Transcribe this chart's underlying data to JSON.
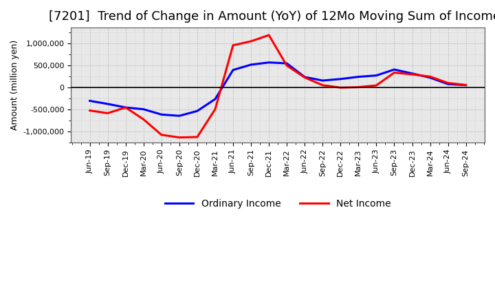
{
  "title": "[7201]  Trend of Change in Amount (YoY) of 12Mo Moving Sum of Incomes",
  "ylabel": "Amount (million yen)",
  "x_labels": [
    "Jun-19",
    "Sep-19",
    "Dec-19",
    "Mar-20",
    "Jun-20",
    "Sep-20",
    "Dec-20",
    "Mar-21",
    "Jun-21",
    "Sep-21",
    "Dec-21",
    "Mar-22",
    "Jun-22",
    "Sep-22",
    "Dec-22",
    "Mar-23",
    "Jun-23",
    "Sep-23",
    "Dec-23",
    "Mar-24",
    "Jun-24",
    "Sep-24"
  ],
  "ordinary_income": [
    -310000,
    -380000,
    -460000,
    -500000,
    -620000,
    -650000,
    -540000,
    -270000,
    390000,
    510000,
    560000,
    540000,
    230000,
    150000,
    185000,
    235000,
    265000,
    400000,
    310000,
    215000,
    70000,
    45000
  ],
  "net_income": [
    -530000,
    -590000,
    -460000,
    -730000,
    -1080000,
    -1140000,
    -1130000,
    -500000,
    950000,
    1040000,
    1180000,
    490000,
    220000,
    45000,
    -10000,
    0,
    40000,
    330000,
    290000,
    240000,
    95000,
    50000
  ],
  "ordinary_income_color": "#0000ff",
  "net_income_color": "#ff0000",
  "ylim": [
    -1250000,
    1350000
  ],
  "yticks": [
    -1000000,
    -500000,
    0,
    500000,
    1000000
  ],
  "background_color": "#ffffff",
  "plot_bg_color": "#e8e8e8",
  "grid_color": "#999999",
  "title_fontsize": 13,
  "axis_fontsize": 9,
  "tick_fontsize": 8,
  "legend_fontsize": 10
}
